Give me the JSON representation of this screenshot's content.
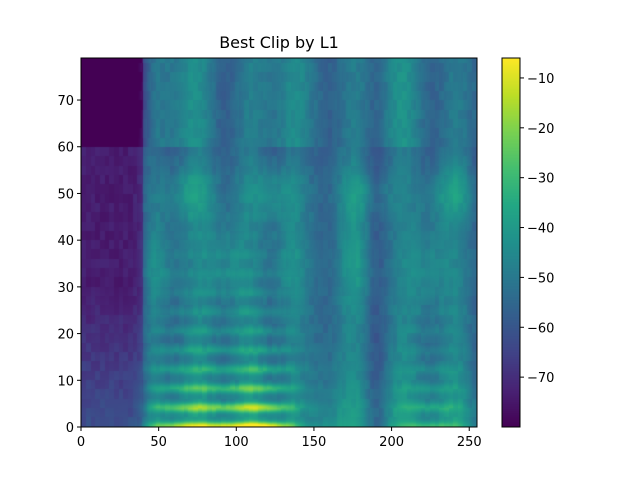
{
  "chart_data": {
    "type": "heatmap",
    "title": "Best Clip by L1",
    "xlabel": "",
    "ylabel": "",
    "xlim": [
      0,
      255
    ],
    "ylim": [
      0,
      79
    ],
    "x_ticks": [
      "0",
      "50",
      "100",
      "150",
      "200",
      "250"
    ],
    "y_ticks": [
      "0",
      "10",
      "20",
      "30",
      "40",
      "50",
      "60",
      "70"
    ],
    "colormap": "viridis",
    "color_range": [
      -80,
      -6
    ],
    "colorbar_ticks": [
      "−10",
      "−20",
      "−30",
      "−40",
      "−50",
      "−60",
      "−70"
    ],
    "grid": false,
    "description_of_values": {
      "background_level": -65,
      "dark_region_x": [
        0,
        40
      ],
      "dark_region_value": -78,
      "bright_harmonic_rows": [
        3,
        7,
        10,
        15,
        20,
        25,
        30
      ],
      "bright_region_x": [
        45,
        140
      ],
      "peak_value": -8
    }
  }
}
